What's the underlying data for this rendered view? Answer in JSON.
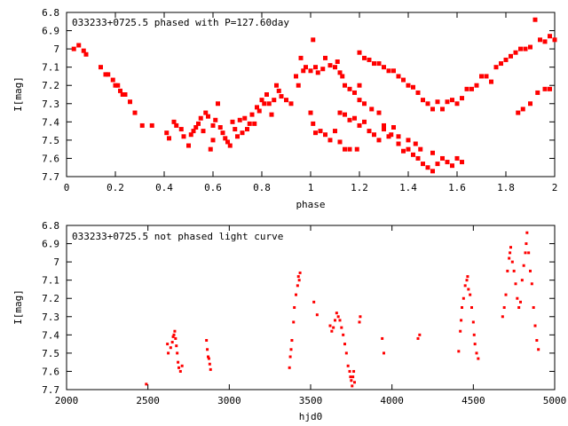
{
  "chart_data": [
    {
      "type": "scatter",
      "title": "033233+0725.5 phased with P=127.60day",
      "xlabel": "phase",
      "ylabel": "I[mag]",
      "xlim": [
        0,
        2
      ],
      "ylim": [
        6.8,
        7.7
      ],
      "y_inverted": true,
      "grid": false,
      "marker_color": "#ff0000",
      "x_ticks": [
        0,
        0.2,
        0.4,
        0.6,
        0.8,
        1,
        1.2,
        1.4,
        1.6,
        1.8,
        2
      ],
      "x_tick_labels": [
        "0",
        "0.2",
        "0.4",
        "0.6",
        "0.8",
        "1",
        "1.2",
        "1.4",
        "1.6",
        "1.8",
        "2"
      ],
      "y_ticks": [
        6.8,
        6.9,
        7.0,
        7.1,
        7.2,
        7.3,
        7.4,
        7.5,
        7.6,
        7.7
      ],
      "y_tick_labels": [
        "6.8",
        "6.9",
        "7",
        "7.1",
        "7.2",
        "7.3",
        "7.4",
        "7.5",
        "7.6",
        "7.7"
      ],
      "points": [
        [
          0.03,
          7.0
        ],
        [
          0.05,
          6.98
        ],
        [
          0.07,
          7.01
        ],
        [
          0.08,
          7.03
        ],
        [
          0.14,
          7.1
        ],
        [
          0.16,
          7.14
        ],
        [
          0.17,
          7.14
        ],
        [
          0.19,
          7.17
        ],
        [
          0.2,
          7.2
        ],
        [
          0.21,
          7.2
        ],
        [
          0.22,
          7.23
        ],
        [
          0.23,
          7.25
        ],
        [
          0.24,
          7.25
        ],
        [
          0.26,
          7.29
        ],
        [
          0.28,
          7.35
        ],
        [
          0.31,
          7.42
        ],
        [
          0.35,
          7.42
        ],
        [
          0.41,
          7.46
        ],
        [
          0.42,
          7.49
        ],
        [
          0.44,
          7.4
        ],
        [
          0.45,
          7.42
        ],
        [
          0.47,
          7.44
        ],
        [
          0.48,
          7.48
        ],
        [
          0.5,
          7.53
        ],
        [
          0.51,
          7.47
        ],
        [
          0.52,
          7.45
        ],
        [
          0.53,
          7.43
        ],
        [
          0.54,
          7.41
        ],
        [
          0.55,
          7.38
        ],
        [
          0.56,
          7.45
        ],
        [
          0.57,
          7.35
        ],
        [
          0.58,
          7.37
        ],
        [
          0.59,
          7.55
        ],
        [
          0.6,
          7.5
        ],
        [
          0.6,
          7.42
        ],
        [
          0.61,
          7.39
        ],
        [
          0.62,
          7.3
        ],
        [
          0.63,
          7.43
        ],
        [
          0.64,
          7.46
        ],
        [
          0.65,
          7.49
        ],
        [
          0.66,
          7.51
        ],
        [
          0.67,
          7.53
        ],
        [
          0.68,
          7.4
        ],
        [
          0.69,
          7.44
        ],
        [
          0.7,
          7.48
        ],
        [
          0.71,
          7.39
        ],
        [
          0.72,
          7.46
        ],
        [
          0.73,
          7.38
        ],
        [
          0.74,
          7.44
        ],
        [
          0.75,
          7.41
        ],
        [
          0.76,
          7.36
        ],
        [
          0.77,
          7.41
        ],
        [
          0.78,
          7.32
        ],
        [
          0.79,
          7.34
        ],
        [
          0.8,
          7.28
        ],
        [
          0.81,
          7.3
        ],
        [
          0.82,
          7.25
        ],
        [
          0.83,
          7.3
        ],
        [
          0.84,
          7.36
        ],
        [
          0.85,
          7.28
        ],
        [
          0.86,
          7.2
        ],
        [
          0.87,
          7.23
        ],
        [
          0.88,
          7.26
        ],
        [
          0.9,
          7.28
        ],
        [
          0.92,
          7.3
        ],
        [
          0.94,
          7.15
        ],
        [
          0.95,
          7.2
        ],
        [
          0.96,
          7.05
        ],
        [
          0.97,
          7.12
        ],
        [
          0.98,
          7.1
        ],
        [
          1.0,
          7.12
        ],
        [
          1.01,
          6.95
        ],
        [
          1.02,
          7.1
        ],
        [
          1.03,
          7.13
        ],
        [
          1.05,
          7.11
        ],
        [
          1.06,
          7.05
        ],
        [
          1.08,
          7.09
        ],
        [
          1.1,
          7.1
        ],
        [
          1.11,
          7.07
        ],
        [
          1.12,
          7.13
        ],
        [
          1.13,
          7.15
        ],
        [
          1.14,
          7.2
        ],
        [
          1.16,
          7.22
        ],
        [
          1.18,
          7.24
        ],
        [
          1.2,
          7.2
        ],
        [
          1.0,
          7.35
        ],
        [
          1.01,
          7.41
        ],
        [
          1.02,
          7.46
        ],
        [
          1.04,
          7.45
        ],
        [
          1.06,
          7.47
        ],
        [
          1.08,
          7.5
        ],
        [
          1.1,
          7.45
        ],
        [
          1.12,
          7.35
        ],
        [
          1.14,
          7.36
        ],
        [
          1.16,
          7.39
        ],
        [
          1.18,
          7.38
        ],
        [
          1.2,
          7.42
        ],
        [
          1.22,
          7.4
        ],
        [
          1.24,
          7.45
        ],
        [
          1.26,
          7.47
        ],
        [
          1.28,
          7.5
        ],
        [
          1.3,
          7.44
        ],
        [
          1.32,
          7.48
        ],
        [
          1.34,
          7.43
        ],
        [
          1.36,
          7.52
        ],
        [
          1.38,
          7.56
        ],
        [
          1.4,
          7.55
        ],
        [
          1.42,
          7.58
        ],
        [
          1.44,
          7.6
        ],
        [
          1.46,
          7.63
        ],
        [
          1.48,
          7.65
        ],
        [
          1.5,
          7.67
        ],
        [
          1.52,
          7.63
        ],
        [
          1.54,
          7.6
        ],
        [
          1.56,
          7.62
        ],
        [
          1.58,
          7.64
        ],
        [
          1.6,
          7.6
        ],
        [
          1.62,
          7.62
        ],
        [
          1.2,
          7.02
        ],
        [
          1.22,
          7.05
        ],
        [
          1.24,
          7.06
        ],
        [
          1.26,
          7.08
        ],
        [
          1.28,
          7.08
        ],
        [
          1.3,
          7.1
        ],
        [
          1.32,
          7.12
        ],
        [
          1.34,
          7.12
        ],
        [
          1.36,
          7.15
        ],
        [
          1.38,
          7.17
        ],
        [
          1.4,
          7.2
        ],
        [
          1.42,
          7.21
        ],
        [
          1.44,
          7.24
        ],
        [
          1.46,
          7.28
        ],
        [
          1.48,
          7.3
        ],
        [
          1.5,
          7.33
        ],
        [
          1.52,
          7.29
        ],
        [
          1.54,
          7.33
        ],
        [
          1.56,
          7.29
        ],
        [
          1.58,
          7.28
        ],
        [
          1.6,
          7.3
        ],
        [
          1.62,
          7.27
        ],
        [
          1.64,
          7.22
        ],
        [
          1.66,
          7.22
        ],
        [
          1.68,
          7.2
        ],
        [
          1.7,
          7.15
        ],
        [
          1.72,
          7.15
        ],
        [
          1.74,
          7.18
        ],
        [
          1.76,
          7.1
        ],
        [
          1.78,
          7.08
        ],
        [
          1.8,
          7.06
        ],
        [
          1.82,
          7.04
        ],
        [
          1.84,
          7.02
        ],
        [
          1.86,
          7.0
        ],
        [
          1.88,
          7.0
        ],
        [
          1.9,
          6.99
        ],
        [
          1.92,
          6.84
        ],
        [
          1.94,
          6.95
        ],
        [
          1.96,
          6.96
        ],
        [
          1.98,
          6.93
        ],
        [
          2.0,
          6.95
        ],
        [
          1.85,
          7.35
        ],
        [
          1.87,
          7.33
        ],
        [
          1.9,
          7.3
        ],
        [
          1.93,
          7.24
        ],
        [
          1.96,
          7.22
        ],
        [
          1.98,
          7.22
        ],
        [
          1.2,
          7.28
        ],
        [
          1.22,
          7.3
        ],
        [
          1.25,
          7.33
        ],
        [
          1.28,
          7.35
        ],
        [
          1.3,
          7.42
        ],
        [
          1.33,
          7.47
        ],
        [
          1.36,
          7.48
        ],
        [
          1.4,
          7.5
        ],
        [
          1.43,
          7.52
        ],
        [
          1.45,
          7.55
        ],
        [
          1.5,
          7.57
        ],
        [
          1.12,
          7.51
        ],
        [
          1.14,
          7.55
        ],
        [
          1.16,
          7.55
        ],
        [
          1.19,
          7.55
        ]
      ]
    },
    {
      "type": "scatter",
      "title": "033233+0725.5 not phased light curve",
      "xlabel": "hjd0",
      "ylabel": "I[mag]",
      "xlim": [
        2000,
        5000
      ],
      "ylim": [
        6.8,
        7.7
      ],
      "y_inverted": true,
      "grid": false,
      "marker_color": "#ff0000",
      "x_ticks": [
        2000,
        2500,
        3000,
        3500,
        4000,
        4500,
        5000
      ],
      "x_tick_labels": [
        "2000",
        "2500",
        "3000",
        "3500",
        "4000",
        "4500",
        "5000"
      ],
      "y_ticks": [
        6.8,
        6.9,
        7.0,
        7.1,
        7.2,
        7.3,
        7.4,
        7.5,
        7.6,
        7.7
      ],
      "y_tick_labels": [
        "6.8",
        "6.9",
        "7",
        "7.1",
        "7.2",
        "7.3",
        "7.4",
        "7.5",
        "7.6",
        "7.7"
      ],
      "points": [
        [
          2490,
          7.67
        ],
        [
          2620,
          7.45
        ],
        [
          2625,
          7.5
        ],
        [
          2640,
          7.47
        ],
        [
          2650,
          7.44
        ],
        [
          2655,
          7.41
        ],
        [
          2660,
          7.4
        ],
        [
          2665,
          7.38
        ],
        [
          2670,
          7.42
        ],
        [
          2675,
          7.46
        ],
        [
          2680,
          7.5
        ],
        [
          2685,
          7.55
        ],
        [
          2690,
          7.58
        ],
        [
          2700,
          7.6
        ],
        [
          2710,
          7.57
        ],
        [
          2860,
          7.43
        ],
        [
          2865,
          7.48
        ],
        [
          2870,
          7.52
        ],
        [
          2875,
          7.53
        ],
        [
          2880,
          7.56
        ],
        [
          2885,
          7.59
        ],
        [
          3370,
          7.58
        ],
        [
          3375,
          7.52
        ],
        [
          3380,
          7.48
        ],
        [
          3385,
          7.43
        ],
        [
          3395,
          7.33
        ],
        [
          3400,
          7.25
        ],
        [
          3410,
          7.18
        ],
        [
          3420,
          7.13
        ],
        [
          3425,
          7.08
        ],
        [
          3430,
          7.1
        ],
        [
          3435,
          7.06
        ],
        [
          3520,
          7.22
        ],
        [
          3540,
          7.29
        ],
        [
          3620,
          7.35
        ],
        [
          3630,
          7.38
        ],
        [
          3640,
          7.36
        ],
        [
          3650,
          7.32
        ],
        [
          3660,
          7.28
        ],
        [
          3670,
          7.3
        ],
        [
          3680,
          7.32
        ],
        [
          3690,
          7.36
        ],
        [
          3700,
          7.4
        ],
        [
          3710,
          7.45
        ],
        [
          3720,
          7.5
        ],
        [
          3730,
          7.57
        ],
        [
          3740,
          7.6
        ],
        [
          3745,
          7.63
        ],
        [
          3750,
          7.65
        ],
        [
          3755,
          7.68
        ],
        [
          3760,
          7.63
        ],
        [
          3765,
          7.6
        ],
        [
          3770,
          7.66
        ],
        [
          3800,
          7.33
        ],
        [
          3805,
          7.3
        ],
        [
          3940,
          7.42
        ],
        [
          3950,
          7.5
        ],
        [
          4160,
          7.42
        ],
        [
          4170,
          7.4
        ],
        [
          4410,
          7.49
        ],
        [
          4420,
          7.38
        ],
        [
          4425,
          7.32
        ],
        [
          4430,
          7.25
        ],
        [
          4440,
          7.2
        ],
        [
          4450,
          7.13
        ],
        [
          4460,
          7.1
        ],
        [
          4465,
          7.08
        ],
        [
          4470,
          7.15
        ],
        [
          4480,
          7.18
        ],
        [
          4490,
          7.25
        ],
        [
          4500,
          7.33
        ],
        [
          4505,
          7.4
        ],
        [
          4510,
          7.45
        ],
        [
          4520,
          7.5
        ],
        [
          4530,
          7.53
        ],
        [
          4680,
          7.3
        ],
        [
          4690,
          7.25
        ],
        [
          4700,
          7.18
        ],
        [
          4710,
          7.05
        ],
        [
          4720,
          6.98
        ],
        [
          4725,
          6.95
        ],
        [
          4730,
          6.92
        ],
        [
          4740,
          7.0
        ],
        [
          4750,
          7.05
        ],
        [
          4760,
          7.12
        ],
        [
          4770,
          7.2
        ],
        [
          4780,
          7.25
        ],
        [
          4790,
          7.22
        ],
        [
          4800,
          7.1
        ],
        [
          4810,
          7.02
        ],
        [
          4820,
          6.95
        ],
        [
          4825,
          6.9
        ],
        [
          4830,
          6.84
        ],
        [
          4840,
          6.95
        ],
        [
          4850,
          7.05
        ],
        [
          4860,
          7.12
        ],
        [
          4870,
          7.25
        ],
        [
          4880,
          7.35
        ],
        [
          4890,
          7.43
        ],
        [
          4900,
          7.48
        ]
      ]
    }
  ]
}
